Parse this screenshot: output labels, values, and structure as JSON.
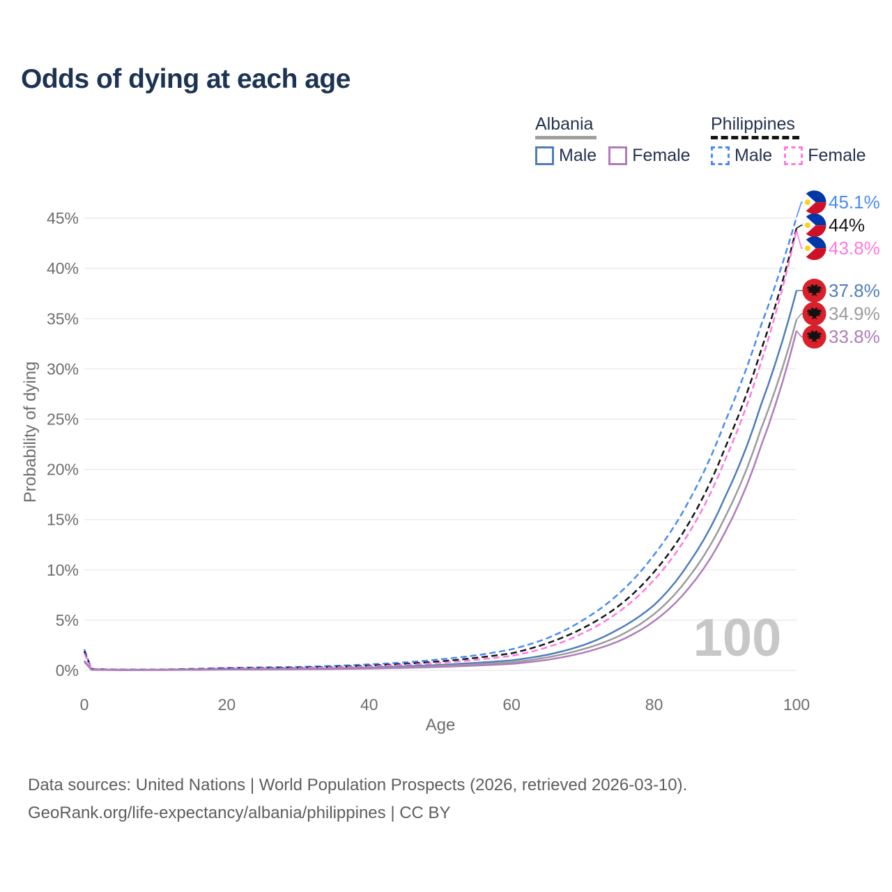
{
  "title": "Odds of dying at each age",
  "legend": {
    "albania": {
      "label": "Albania",
      "male": "Male",
      "female": "Female"
    },
    "philippines": {
      "label": "Philippines",
      "male": "Male",
      "female": "Female"
    }
  },
  "axes": {
    "x_label": "Age",
    "y_label": "Probability of dying"
  },
  "watermark": "100",
  "footer": {
    "line1": "Data sources: United Nations | World Population Prospects (2026, retrieved 2026-03-10).",
    "line2": "GeoRank.org/life-expectancy/albania/philippines | CC BY"
  },
  "colors": {
    "title": "#1c3354",
    "axis_text": "#6d6d6d",
    "gridline": "#e7e7e7",
    "watermark": "#c7c7c7",
    "albania_male": "#4e7db8",
    "albania_total": "#9b9b9b",
    "albania_female": "#b07cba",
    "philippines_male": "#4a8af4",
    "philippines_total": "#141414",
    "philippines_female": "#ff78e2",
    "albania_flag_red": "#d9202b",
    "philippines_flag_blue": "#0038a8",
    "philippines_flag_red": "#ce1126",
    "philippines_flag_yellow": "#fcd116"
  },
  "chart_data": {
    "type": "line",
    "title": "Odds of dying at each age",
    "xlabel": "Age",
    "ylabel": "Probability of dying",
    "unit": "%",
    "xlim": [
      0,
      100
    ],
    "ylim": [
      0,
      45
    ],
    "xticks": [
      0,
      20,
      40,
      60,
      80,
      100
    ],
    "yticks": [
      0,
      5,
      10,
      15,
      20,
      25,
      30,
      35,
      40,
      45
    ],
    "ytick_suffix": "%",
    "grid": "horizontal",
    "legend_position": "top-right",
    "x": [
      0,
      1,
      5,
      10,
      15,
      20,
      25,
      30,
      35,
      40,
      45,
      50,
      55,
      60,
      65,
      70,
      75,
      80,
      85,
      90,
      95,
      100
    ],
    "series": [
      {
        "name": "Philippines male",
        "country": "philippines",
        "sex": "male",
        "color": "#4a8af4",
        "dash": true,
        "end_label": "45.1%",
        "values": [
          2.1,
          0.15,
          0.08,
          0.08,
          0.15,
          0.25,
          0.3,
          0.35,
          0.45,
          0.6,
          0.8,
          1.1,
          1.5,
          2.1,
          3.2,
          5.0,
          7.6,
          11.5,
          17.0,
          24.8,
          34.3,
          45.1
        ]
      },
      {
        "name": "Philippines both sexes",
        "country": "philippines",
        "sex": "all",
        "color": "#141414",
        "dash": true,
        "end_label": "44%",
        "values": [
          1.9,
          0.13,
          0.07,
          0.07,
          0.12,
          0.2,
          0.24,
          0.28,
          0.36,
          0.48,
          0.65,
          0.9,
          1.25,
          1.7,
          2.7,
          4.2,
          6.4,
          9.8,
          14.8,
          22.2,
          31.8,
          44.0
        ]
      },
      {
        "name": "Philippines female",
        "country": "philippines",
        "sex": "female",
        "color": "#ff78e2",
        "dash": true,
        "end_label": "43.8%",
        "values": [
          1.7,
          0.12,
          0.06,
          0.06,
          0.1,
          0.16,
          0.2,
          0.23,
          0.3,
          0.4,
          0.55,
          0.75,
          1.05,
          1.45,
          2.3,
          3.7,
          5.8,
          9.0,
          13.8,
          21.0,
          30.6,
          43.8
        ]
      },
      {
        "name": "Albania male",
        "country": "albania",
        "sex": "male",
        "color": "#4e7db8",
        "dash": false,
        "end_label": "37.8%",
        "values": [
          0.95,
          0.07,
          0.04,
          0.05,
          0.08,
          0.12,
          0.14,
          0.16,
          0.2,
          0.28,
          0.4,
          0.55,
          0.75,
          1.0,
          1.55,
          2.5,
          4.1,
          6.5,
          10.8,
          17.3,
          26.4,
          37.8
        ]
      },
      {
        "name": "Albania both sexes",
        "country": "albania",
        "sex": "all",
        "color": "#9b9b9b",
        "dash": false,
        "end_label": "34.9%",
        "values": [
          0.9,
          0.06,
          0.035,
          0.04,
          0.07,
          0.1,
          0.12,
          0.13,
          0.17,
          0.23,
          0.32,
          0.45,
          0.6,
          0.8,
          1.3,
          2.1,
          3.4,
          5.6,
          9.4,
          15.3,
          24.0,
          34.9
        ]
      },
      {
        "name": "Albania female",
        "country": "albania",
        "sex": "female",
        "color": "#b07cba",
        "dash": false,
        "end_label": "33.8%",
        "values": [
          0.85,
          0.05,
          0.03,
          0.035,
          0.05,
          0.08,
          0.09,
          0.11,
          0.14,
          0.18,
          0.25,
          0.35,
          0.48,
          0.65,
          1.05,
          1.75,
          2.9,
          4.9,
          8.3,
          13.8,
          22.3,
          33.8
        ]
      }
    ]
  }
}
